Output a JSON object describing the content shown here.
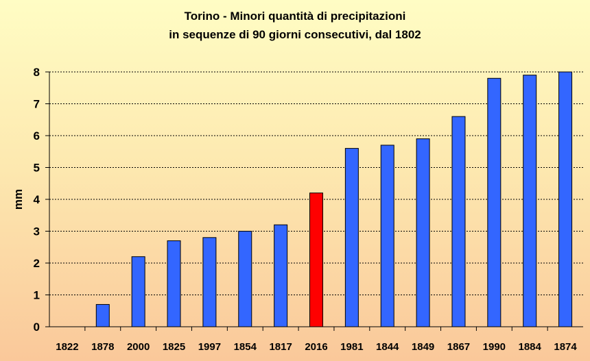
{
  "chart_data": {
    "type": "bar",
    "title": "Torino - Minori quantità di precipitazioni",
    "subtitle": "in sequenze di 90 giorni consecutivi, dal 1802",
    "xlabel": "",
    "ylabel": "mm",
    "ylim": [
      0,
      8
    ],
    "yticks": [
      "0",
      "1",
      "2",
      "3",
      "4",
      "5",
      "6",
      "7",
      "8"
    ],
    "grid": true,
    "categories": [
      "1822",
      "1878",
      "2000",
      "1825",
      "1997",
      "1854",
      "1817",
      "2016",
      "1981",
      "1844",
      "1849",
      "1867",
      "1990",
      "1884",
      "1874"
    ],
    "values": [
      0,
      0.7,
      2.2,
      2.7,
      2.8,
      3.0,
      3.2,
      4.2,
      5.6,
      5.7,
      5.9,
      6.6,
      7.8,
      7.9,
      8.0
    ],
    "highlight_category": "2016",
    "colors": {
      "bar": "#3366ff",
      "highlight": "#ff0000",
      "grid": "#000000",
      "axis": "#000000"
    }
  }
}
